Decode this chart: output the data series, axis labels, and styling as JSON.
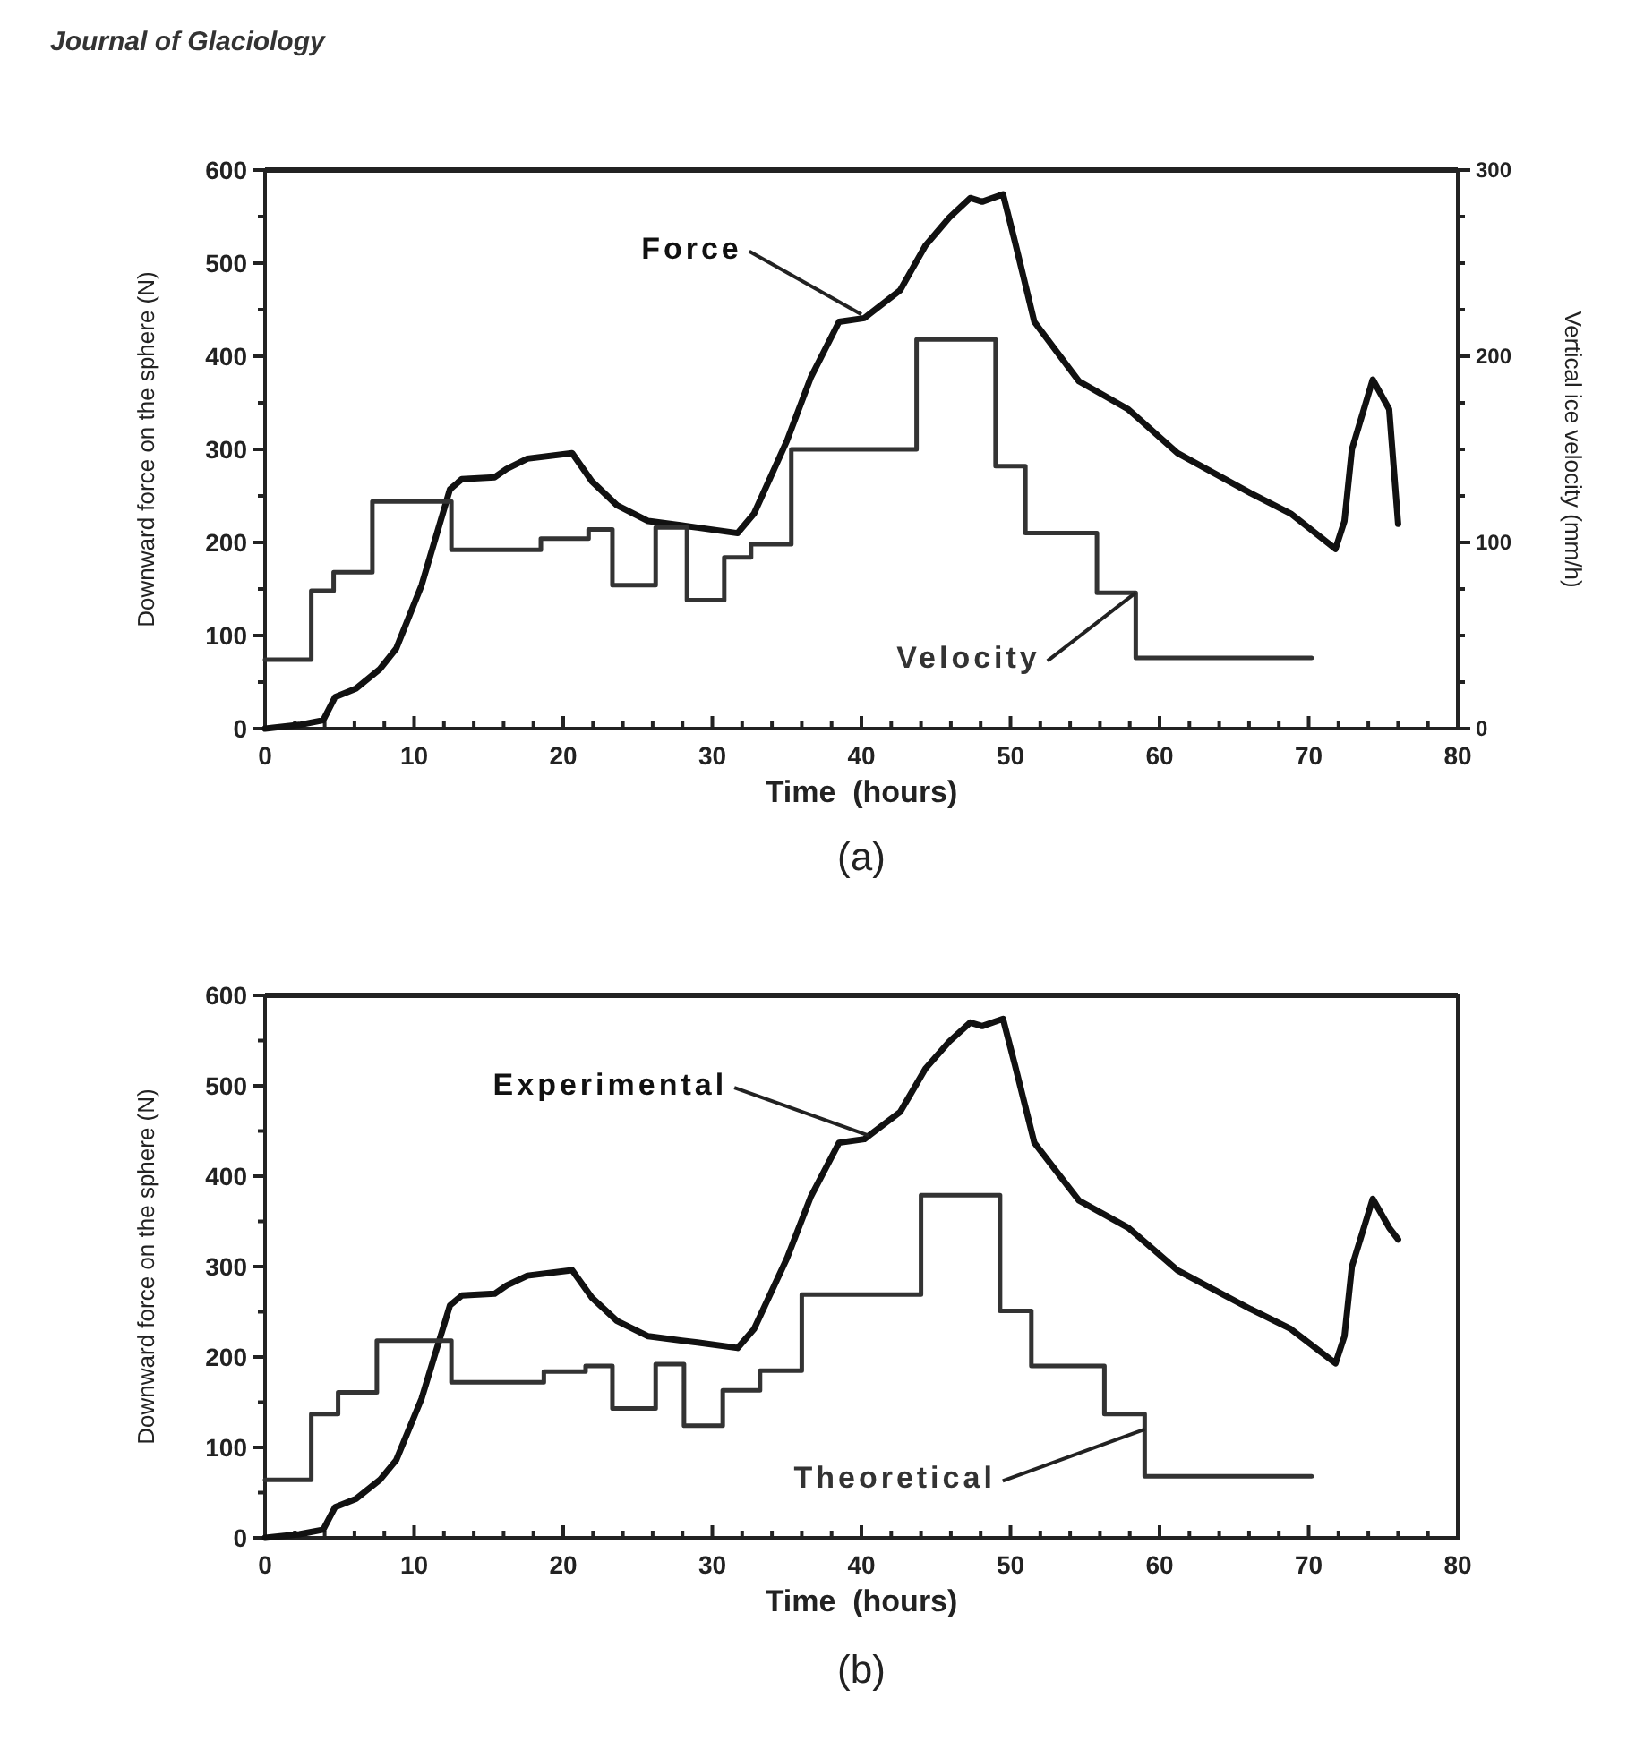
{
  "chart_data": [
    {
      "type": "line",
      "title": "Journal of Glaciology",
      "xlabel": "Time  (hours)",
      "ylabel": "Downward force on the sphere (N)",
      "y2label": "Vertical ice velocity (mm/h)",
      "annotations": [
        "(a)"
      ],
      "xlim": [
        0,
        80
      ],
      "ylim": [
        0,
        600
      ],
      "y2lim": [
        0,
        300
      ],
      "xticks": [
        0,
        {
          "value": 2,
          "label": null
        },
        {
          "value": 4,
          "label": null
        },
        {
          "value": 6,
          "label": null
        },
        {
          "value": 8,
          "label": null
        },
        10,
        {
          "value": 12,
          "label": null
        },
        {
          "value": 14,
          "label": null
        },
        {
          "value": 16,
          "label": null
        },
        {
          "value": 18,
          "label": null
        },
        20,
        {
          "value": 22,
          "label": null
        },
        {
          "value": 24,
          "label": null
        },
        {
          "value": 26,
          "label": null
        },
        {
          "value": 28,
          "label": null
        },
        30,
        {
          "value": 32,
          "label": null
        },
        {
          "value": 34,
          "label": null
        },
        {
          "value": 36,
          "label": null
        },
        {
          "value": 38,
          "label": null
        },
        40,
        {
          "value": 42,
          "label": null
        },
        {
          "value": 44,
          "label": null
        },
        {
          "value": 46,
          "label": null
        },
        {
          "value": 48,
          "label": null
        },
        50,
        {
          "value": 52,
          "label": null
        },
        {
          "value": 54,
          "label": null
        },
        {
          "value": 56,
          "label": null
        },
        {
          "value": 58,
          "label": null
        },
        60,
        {
          "value": 62,
          "label": null
        },
        {
          "value": 64,
          "label": null
        },
        {
          "value": 66,
          "label": null
        },
        {
          "value": 68,
          "label": null
        },
        70,
        {
          "value": 72,
          "label": null
        },
        {
          "value": 74,
          "label": null
        },
        {
          "value": 76,
          "label": null
        },
        {
          "value": 78,
          "label": null
        },
        80
      ],
      "yticks": [
        0,
        {
          "value": 50,
          "label": null
        },
        100,
        {
          "value": 150,
          "label": null
        },
        200,
        {
          "value": 250,
          "label": null
        },
        300,
        {
          "value": 350,
          "label": null
        },
        400,
        {
          "value": 450,
          "label": null
        },
        500,
        {
          "value": 550,
          "label": null
        },
        600
      ],
      "y2ticks": [
        0,
        {
          "value": 25,
          "label": null
        },
        {
          "value": 50,
          "label": null
        },
        {
          "value": 75,
          "label": null
        },
        100,
        {
          "value": 125,
          "label": null
        },
        {
          "value": 150,
          "label": null
        },
        {
          "value": 175,
          "label": null
        },
        200,
        {
          "value": 225,
          "label": null
        },
        {
          "value": 250,
          "label": null
        },
        {
          "value": 275,
          "label": null
        },
        300
      ],
      "grid": false,
      "series": [
        {
          "name": "Force",
          "color": "#111111",
          "x": [
            0,
            2.3,
            3.9,
            4.7,
            6.1,
            7.7,
            8.8,
            10.5,
            12.4,
            13.2,
            15.4,
            16.2,
            17.6,
            20.6,
            21.9,
            23.6,
            25.7,
            29,
            31.7,
            32.8,
            35,
            36.6,
            38.5,
            40.2,
            42.6,
            44.3,
            45.9,
            47.3,
            48.1,
            49.5,
            50.3,
            51.6,
            54.6,
            57.9,
            61.2,
            66.1,
            68.8,
            71.8,
            72.4,
            72.9,
            74.3,
            75.4,
            76
          ],
          "values": [
            0,
            4,
            9,
            34,
            43,
            64,
            86,
            154,
            257,
            268,
            270,
            279,
            290,
            296,
            266,
            240,
            223,
            216,
            210,
            231,
            309,
            377,
            437,
            441,
            471,
            519,
            549,
            570,
            566,
            574,
            523,
            437,
            373,
            343,
            296,
            253,
            231,
            193,
            223,
            300,
            375,
            343,
            220
          ]
        },
        {
          "name": "Velocity",
          "type": "step",
          "axis": "y2",
          "color": "#333333",
          "x": [
            0,
            3.1,
            4.6,
            7.2,
            12.5,
            18.5,
            21.7,
            23.3,
            26.2,
            28.3,
            30.8,
            32.6,
            35.3,
            43.7,
            49,
            51,
            55.8,
            58.4,
            70.2
          ],
          "values": [
            37,
            74,
            84,
            122,
            96,
            102,
            107,
            77,
            108,
            69,
            92,
            99,
            150,
            209,
            141,
            105,
            73,
            38,
            38
          ]
        }
      ]
    },
    {
      "type": "line",
      "xlabel": "Time  (hours)",
      "ylabel": "Downward force on the sphere (N)",
      "annotations": [
        "(b)"
      ],
      "xlim": [
        0,
        80
      ],
      "ylim": [
        0,
        600
      ],
      "xticks": [
        0,
        {
          "value": 2,
          "label": null
        },
        {
          "value": 4,
          "label": null
        },
        {
          "value": 6,
          "label": null
        },
        {
          "value": 8,
          "label": null
        },
        10,
        {
          "value": 12,
          "label": null
        },
        {
          "value": 14,
          "label": null
        },
        {
          "value": 16,
          "label": null
        },
        {
          "value": 18,
          "label": null
        },
        20,
        {
          "value": 22,
          "label": null
        },
        {
          "value": 24,
          "label": null
        },
        {
          "value": 26,
          "label": null
        },
        {
          "value": 28,
          "label": null
        },
        30,
        {
          "value": 32,
          "label": null
        },
        {
          "value": 34,
          "label": null
        },
        {
          "value": 36,
          "label": null
        },
        {
          "value": 38,
          "label": null
        },
        40,
        {
          "value": 42,
          "label": null
        },
        {
          "value": 44,
          "label": null
        },
        {
          "value": 46,
          "label": null
        },
        {
          "value": 48,
          "label": null
        },
        50,
        {
          "value": 52,
          "label": null
        },
        {
          "value": 54,
          "label": null
        },
        {
          "value": 56,
          "label": null
        },
        {
          "value": 58,
          "label": null
        },
        60,
        {
          "value": 62,
          "label": null
        },
        {
          "value": 64,
          "label": null
        },
        {
          "value": 66,
          "label": null
        },
        {
          "value": 68,
          "label": null
        },
        70,
        {
          "value": 72,
          "label": null
        },
        {
          "value": 74,
          "label": null
        },
        {
          "value": 76,
          "label": null
        },
        {
          "value": 78,
          "label": null
        },
        80
      ],
      "yticks": [
        0,
        {
          "value": 50,
          "label": null
        },
        100,
        {
          "value": 150,
          "label": null
        },
        200,
        {
          "value": 250,
          "label": null
        },
        300,
        {
          "value": 350,
          "label": null
        },
        400,
        {
          "value": 450,
          "label": null
        },
        500,
        {
          "value": 550,
          "label": null
        },
        600
      ],
      "grid": false,
      "series": [
        {
          "name": "Experimental",
          "color": "#111111",
          "x": [
            0,
            2.3,
            3.9,
            4.7,
            6.1,
            7.7,
            8.8,
            10.5,
            12.4,
            13.2,
            15.4,
            16.2,
            17.6,
            20.6,
            21.9,
            23.6,
            25.7,
            29,
            31.7,
            32.8,
            35,
            36.6,
            38.5,
            40.2,
            42.6,
            44.3,
            45.9,
            47.3,
            48.1,
            49.5,
            50.3,
            51.6,
            54.6,
            57.9,
            61.2,
            66.1,
            68.8,
            71.8,
            72.4,
            72.9,
            74.3,
            75.4,
            76
          ],
          "values": [
            0,
            4,
            9,
            34,
            43,
            64,
            86,
            154,
            257,
            268,
            270,
            279,
            290,
            296,
            266,
            240,
            223,
            216,
            210,
            231,
            309,
            377,
            437,
            441,
            471,
            519,
            549,
            570,
            566,
            574,
            523,
            437,
            373,
            343,
            296,
            253,
            231,
            193,
            223,
            300,
            375,
            343,
            330
          ]
        },
        {
          "name": "Theoretical",
          "type": "step",
          "color": "#333333",
          "x": [
            0,
            3.1,
            4.9,
            7.5,
            12.5,
            18.7,
            21.5,
            23.3,
            26.2,
            28.1,
            30.7,
            33.2,
            36,
            44,
            49.3,
            51.4,
            56.3,
            59,
            70.2
          ],
          "values": [
            64,
            137,
            161,
            218,
            172,
            184,
            190,
            143,
            192,
            124,
            163,
            185,
            269,
            379,
            251,
            190,
            137,
            68,
            68
          ]
        }
      ]
    }
  ]
}
